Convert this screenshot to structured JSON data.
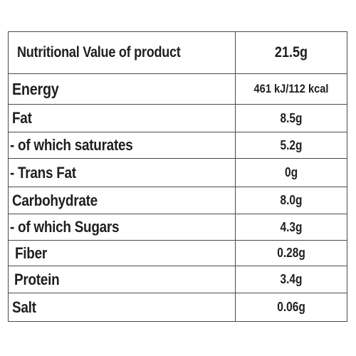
{
  "table": {
    "header": {
      "label": "Nutritional Value of product",
      "value": "21.5g"
    },
    "rows": [
      {
        "label": "Energy",
        "value": "461 kJ/112 kcal"
      },
      {
        "label": "Fat",
        "value": "8.5g"
      },
      {
        "label": "- of which saturates",
        "value": "5.2g"
      },
      {
        "label": "- Trans Fat",
        "value": "0g"
      },
      {
        "label": "Carbohydrate",
        "value": "8.0g"
      },
      {
        "label": "- of which Sugars",
        "value": "4.3g"
      },
      {
        "label": "Fiber",
        "value": "0.28g"
      },
      {
        "label": "Protein",
        "value": "3.4g"
      },
      {
        "label": "Salt",
        "value": "0.06g"
      }
    ]
  }
}
